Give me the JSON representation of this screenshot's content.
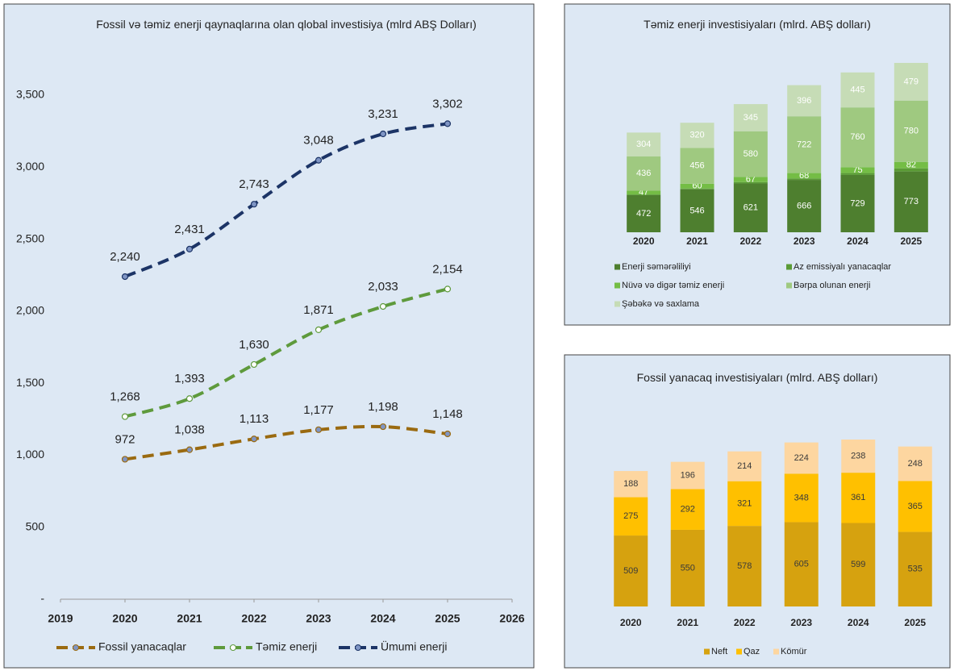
{
  "chart_data": [
    {
      "type": "line",
      "title": "Fossil və təmiz enerji qaynaqlarına olan qlobal investisiya  (mlrd ABŞ Dolları)",
      "x": [
        2020,
        2021,
        2022,
        2023,
        2024,
        2025
      ],
      "xlim": [
        2019,
        2026
      ],
      "xticks": [
        2019,
        2020,
        2021,
        2022,
        2023,
        2024,
        2025,
        2026
      ],
      "ylim": [
        0,
        3500
      ],
      "yticks": [
        {
          "value": 0,
          "label": "-"
        },
        500,
        {
          "value": 1000,
          "label": "1,000"
        },
        {
          "value": 1500,
          "label": "1,500"
        },
        {
          "value": 2000,
          "label": "2,000"
        },
        {
          "value": 2500,
          "label": "2,500"
        },
        {
          "value": 3000,
          "label": "3,000"
        },
        {
          "value": 3500,
          "label": "3,500"
        }
      ],
      "grid": false,
      "legend": "bottom",
      "series": [
        {
          "name": "Fossil yanacaqlar",
          "color": "#9a6a10",
          "marker_color": "#7f95c4",
          "values": [
            972,
            1038,
            1113,
            1177,
            1198,
            1148
          ],
          "value_labels": [
            "972",
            "1,038",
            "1,113",
            "1,177",
            "1,198",
            "1,148"
          ]
        },
        {
          "name": "Təmiz enerji",
          "color": "#5e9a3c",
          "marker_color": "#ffffff",
          "values": [
            1268,
            1393,
            1630,
            1871,
            2033,
            2154
          ],
          "value_labels": [
            "1,268",
            "1,393",
            "1,630",
            "1,871",
            "2,033",
            "2,154"
          ]
        },
        {
          "name": "Ümumi enerji",
          "color": "#1c3466",
          "marker_color": "#7f95c4",
          "values": [
            2240,
            2431,
            2743,
            3048,
            3231,
            3302
          ],
          "value_labels": [
            "2,240",
            "2,431",
            "2,743",
            "3,048",
            "3,231",
            "3,302"
          ]
        }
      ]
    },
    {
      "type": "stacked_bar",
      "title": "Təmiz enerji investisiyaları (mlrd. ABŞ dolları)",
      "categories": [
        "2020",
        "2021",
        "2022",
        "2023",
        "2024",
        "2025"
      ],
      "legend": "bottom",
      "label_color": "#ffffff",
      "series": [
        {
          "name": "Enerji səmərəliliyi",
          "color": "#4e7f2f",
          "values": [
            472,
            546,
            621,
            666,
            729,
            773
          ]
        },
        {
          "name": "Az emissiyalı yanacaqlar",
          "color": "#5b9b36",
          "values": [
            9,
            11,
            17,
            19,
            24,
            40
          ],
          "labels": false
        },
        {
          "name": "Nüvə və digər təmiz enerji",
          "color": "#74bd45",
          "values": [
            47,
            60,
            67,
            68,
            75,
            82
          ]
        },
        {
          "name": "Bərpa olunan enerji",
          "color": "#9fc980",
          "values": [
            436,
            456,
            580,
            722,
            760,
            780
          ]
        },
        {
          "name": "Şəbəkə və saxlama",
          "color": "#c6dcb6",
          "values": [
            304,
            320,
            345,
            396,
            445,
            479
          ]
        }
      ]
    },
    {
      "type": "stacked_bar",
      "title": "Fossil yanacaq investisiyaları (mlrd. ABŞ dolları)",
      "categories": [
        "2020",
        "2021",
        "2022",
        "2023",
        "2024",
        "2025"
      ],
      "legend": "bottom",
      "label_color": "#3a3a3a",
      "series": [
        {
          "name": "Neft",
          "color": "#d6a20f",
          "values": [
            509,
            550,
            578,
            605,
            599,
            535
          ]
        },
        {
          "name": "Qaz",
          "color": "#ffc000",
          "values": [
            275,
            292,
            321,
            348,
            361,
            365
          ]
        },
        {
          "name": "Kömür",
          "color": "#fdd6a0",
          "values": [
            188,
            196,
            214,
            224,
            238,
            248
          ]
        }
      ]
    }
  ]
}
